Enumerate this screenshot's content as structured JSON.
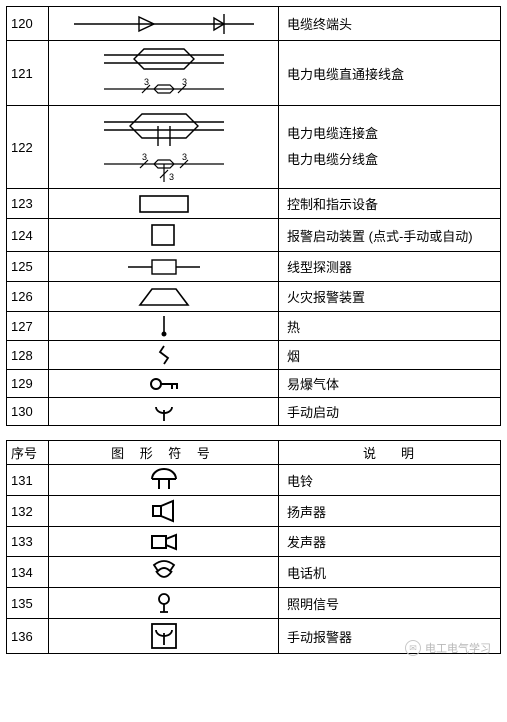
{
  "colors": {
    "stroke": "#000000",
    "bg": "#ffffff",
    "watermark": "#b8b8b8"
  },
  "fonts": {
    "base_size": 13,
    "header_spacing": 6
  },
  "table1": {
    "rows": [
      {
        "n": "120",
        "desc": "电缆终端头",
        "h": 34
      },
      {
        "n": "121",
        "desc": "电力电缆直通接线盒",
        "h": 64
      },
      {
        "n": "122",
        "desc": "电力电缆连接盒\n电力电缆分线盒",
        "h": 82
      },
      {
        "n": "123",
        "desc": "控制和指示设备",
        "h": 30
      },
      {
        "n": "124",
        "desc": "报警启动装置 (点式-手动或自动)",
        "h": 32
      },
      {
        "n": "125",
        "desc": "线型探测器",
        "h": 30
      },
      {
        "n": "126",
        "desc": "火灾报警装置",
        "h": 30
      },
      {
        "n": "127",
        "desc": "热",
        "h": 28
      },
      {
        "n": "128",
        "desc": "烟",
        "h": 28
      },
      {
        "n": "129",
        "desc": "易爆气体",
        "h": 28
      },
      {
        "n": "130",
        "desc": "手动启动",
        "h": 28
      }
    ]
  },
  "table2": {
    "headers": {
      "num": "序号",
      "sym": "图 形 符 号",
      "desc": "说　明"
    },
    "rows": [
      {
        "n": "131",
        "desc": "电铃",
        "h": 30
      },
      {
        "n": "132",
        "desc": "扬声器",
        "h": 30
      },
      {
        "n": "133",
        "desc": "发声器",
        "h": 30
      },
      {
        "n": "134",
        "desc": "电话机",
        "h": 30
      },
      {
        "n": "135",
        "desc": "照明信号",
        "h": 30
      },
      {
        "n": "136",
        "desc": "手动报警器",
        "h": 34
      }
    ]
  },
  "watermark": {
    "text": "电工电气学习"
  }
}
